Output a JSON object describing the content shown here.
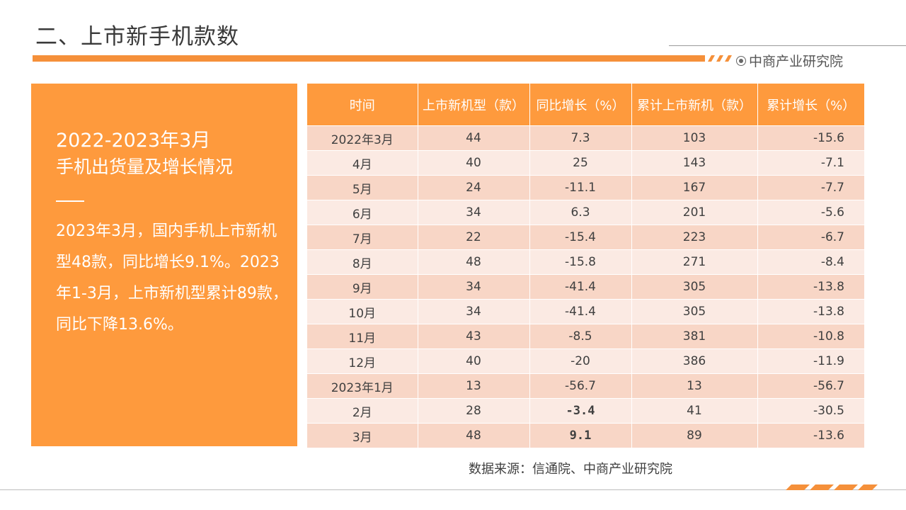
{
  "header": {
    "title": "二、上市新手机款数",
    "brand": "中商产业研究院"
  },
  "left_panel": {
    "title_line1": "2022-2023年3月",
    "title_line2": "手机出货量及增长情况",
    "body": "2023年3月，国内手机上市新机型48款，同比增长9.1%。2023年1-3月，上市新机型累计89款，同比下降13.6%。"
  },
  "table": {
    "headers": [
      "时间",
      "上市新机型（款）",
      "同比增长（%）",
      "累计上市新机（款）",
      "累计增长（%）"
    ],
    "rows": [
      [
        "2022年3月",
        "44",
        "7.3",
        "103",
        "-15.6"
      ],
      [
        "4月",
        "40",
        "25",
        "143",
        "-7.1"
      ],
      [
        "5月",
        "24",
        "-11.1",
        "167",
        "-7.7"
      ],
      [
        "6月",
        "34",
        "6.3",
        "201",
        "-5.6"
      ],
      [
        "7月",
        "22",
        "-15.4",
        "223",
        "-6.7"
      ],
      [
        "8月",
        "48",
        "-15.8",
        "271",
        "-8.4"
      ],
      [
        "9月",
        "34",
        "-41.4",
        "305",
        "-13.8"
      ],
      [
        "10月",
        "34",
        "-41.4",
        "305",
        "-13.8"
      ],
      [
        "11月",
        "43",
        "-8.5",
        "381",
        "-10.8"
      ],
      [
        "12月",
        "40",
        "-20",
        "386",
        "-11.9"
      ],
      [
        "2023年1月",
        "13",
        "-56.7",
        "13",
        "-56.7"
      ],
      [
        "2月",
        "28",
        "-3.4",
        "41",
        "-30.5"
      ],
      [
        "3月",
        "48",
        "9.1",
        "89",
        "-13.6"
      ]
    ]
  },
  "source": "数据来源：信通院、中商产业研究院",
  "colors": {
    "accent": "#fe9a3d",
    "row_dark": "#f8d6c6",
    "row_light": "#fbeae3"
  }
}
